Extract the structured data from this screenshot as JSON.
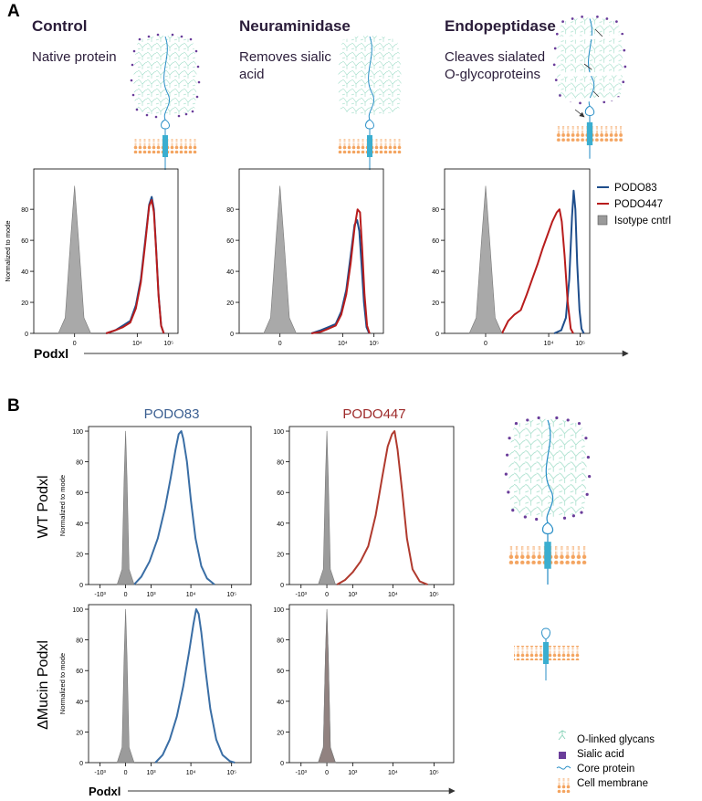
{
  "panel_a": {
    "label": "A",
    "x_axis_label": "Podxl",
    "treatments": [
      {
        "title": "Control",
        "description": "Native protein"
      },
      {
        "title": "Neuraminidase",
        "description": "Removes sialic acid"
      },
      {
        "title": "Endopeptidase",
        "description": "Cleaves sialated O-glycoproteins"
      }
    ]
  },
  "panel_b": {
    "label": "B",
    "x_axis_label": "Podxl",
    "row_labels": [
      "WT Podxl",
      "ΔMucin Podxl"
    ],
    "legend": [
      "O-linked glycans",
      "Sialic acid",
      "Core protein",
      "Cell membrane"
    ]
  },
  "chart_data": [
    {
      "type": "density",
      "ylabel": "Normalized to mode",
      "xscale": "logicle",
      "logicle_width": 200,
      "xlim": [
        -2000,
        200000
      ],
      "xticks": [
        0,
        {
          "value": 10000,
          "label": "10⁴"
        },
        {
          "value": 100000,
          "label": "10⁵"
        }
      ],
      "ylim": [
        0,
        106
      ],
      "yticks": [
        0,
        20,
        40,
        60,
        80
      ],
      "series": [
        {
          "name": "PODO83",
          "color": "#1f4e8c",
          "x": [
            1000,
            2000,
            3500,
            6000,
            9000,
            13000,
            18000,
            24000,
            29000,
            34000,
            40000,
            48000,
            58000,
            70000
          ],
          "values": [
            0,
            2,
            5,
            8,
            18,
            35,
            60,
            83,
            88,
            80,
            55,
            25,
            5,
            0
          ]
        },
        {
          "name": "PODO447",
          "color": "#b81c1c",
          "x": [
            1000,
            2000,
            3500,
            6000,
            9000,
            13000,
            18000,
            24000,
            29000,
            34000,
            40000,
            48000,
            58000,
            70000
          ],
          "values": [
            0,
            2,
            4,
            7,
            16,
            33,
            58,
            82,
            86,
            78,
            54,
            24,
            5,
            0
          ]
        },
        {
          "name": "Isotype cntrl",
          "color": "#9a9a9a",
          "filled": true,
          "x": [
            -300,
            -150,
            -60,
            0,
            60,
            150,
            300
          ],
          "values": [
            0,
            10,
            60,
            95,
            60,
            10,
            0
          ]
        }
      ]
    },
    {
      "type": "density",
      "xscale": "logicle",
      "logicle_width": 200,
      "xlim": [
        -2000,
        200000
      ],
      "xticks": [
        0,
        {
          "value": 10000,
          "label": "10⁴"
        },
        {
          "value": 100000,
          "label": "10⁵"
        }
      ],
      "ylim": [
        0,
        106
      ],
      "yticks": [
        0,
        20,
        40,
        60,
        80
      ],
      "series": [
        {
          "color": "#1f4e8c",
          "x": [
            1000,
            2000,
            3500,
            6000,
            9000,
            13000,
            18000,
            24000,
            29000,
            34000,
            40000,
            48000,
            58000,
            70000
          ],
          "values": [
            0,
            2,
            4,
            6,
            14,
            28,
            50,
            70,
            73,
            66,
            45,
            20,
            4,
            0
          ]
        },
        {
          "color": "#b81c1c",
          "x": [
            1000,
            2000,
            3500,
            6000,
            9000,
            13000,
            18000,
            24000,
            30000,
            36000,
            42000,
            50000,
            60000,
            72000
          ],
          "values": [
            0,
            1,
            3,
            5,
            12,
            25,
            45,
            68,
            80,
            78,
            55,
            25,
            5,
            0
          ]
        },
        {
          "color": "#9a9a9a",
          "filled": true,
          "x": [
            -300,
            -150,
            -60,
            0,
            60,
            150,
            300
          ],
          "values": [
            0,
            10,
            60,
            95,
            60,
            10,
            0
          ]
        }
      ]
    },
    {
      "type": "density",
      "xscale": "logicle",
      "logicle_width": 200,
      "xlim": [
        -2000,
        200000
      ],
      "xticks": [
        0,
        {
          "value": 10000,
          "label": "10⁴"
        },
        {
          "value": 100000,
          "label": "10⁵"
        }
      ],
      "ylim": [
        0,
        106
      ],
      "yticks": [
        0,
        20,
        40,
        60,
        80
      ],
      "series": [
        {
          "color": "#1f4e8c",
          "x": [
            15000,
            25000,
            35000,
            45000,
            55000,
            62000,
            70000,
            80000,
            95000,
            110000,
            130000
          ],
          "values": [
            0,
            2,
            10,
            35,
            75,
            92,
            80,
            45,
            15,
            3,
            0
          ]
        },
        {
          "color": "#b81c1c",
          "x": [
            300,
            500,
            800,
            1300,
            2000,
            3000,
            4500,
            6500,
            9000,
            13000,
            18000,
            22000,
            26000,
            32000,
            40000,
            50000,
            60000
          ],
          "values": [
            0,
            8,
            12,
            15,
            25,
            35,
            45,
            55,
            63,
            72,
            78,
            80,
            72,
            50,
            20,
            3,
            0
          ]
        },
        {
          "color": "#9a9a9a",
          "filled": true,
          "x": [
            -300,
            -150,
            -60,
            0,
            60,
            150,
            300
          ],
          "values": [
            0,
            10,
            60,
            95,
            60,
            10,
            0
          ]
        }
      ]
    },
    {
      "type": "density",
      "ylabel": "Normalized to mode",
      "xscale": "logicle",
      "logicle_width": 500,
      "xlim": [
        -2000,
        300000
      ],
      "xticks": [
        {
          "value": -1000,
          "label": "-10³"
        },
        0,
        {
          "value": 1000,
          "label": "10³"
        },
        {
          "value": 10000,
          "label": "10⁴"
        },
        {
          "value": 100000,
          "label": "10⁵"
        }
      ],
      "ylim": [
        0,
        103
      ],
      "yticks": [
        0,
        20,
        40,
        60,
        80,
        100
      ],
      "series": [
        {
          "name": "PODO83",
          "color": "#3a6ea5",
          "x": [
            250,
            500,
            900,
            1500,
            2300,
            3200,
            4200,
            5000,
            5800,
            6500,
            8000,
            10000,
            13000,
            18000,
            25000,
            38000
          ],
          "values": [
            0,
            5,
            15,
            30,
            50,
            70,
            88,
            98,
            100,
            95,
            80,
            55,
            30,
            12,
            4,
            0
          ]
        },
        {
          "color": "#8a8a8a",
          "filled": true,
          "x": [
            -250,
            -100,
            -40,
            0,
            40,
            100,
            250
          ],
          "values": [
            0,
            10,
            70,
            100,
            70,
            10,
            0
          ]
        }
      ]
    },
    {
      "type": "density",
      "xscale": "logicle",
      "logicle_width": 500,
      "xlim": [
        -2000,
        300000
      ],
      "xticks": [
        {
          "value": -1000,
          "label": "-10³"
        },
        0,
        {
          "value": 1000,
          "label": "10³"
        },
        {
          "value": 10000,
          "label": "10⁴"
        },
        {
          "value": 100000,
          "label": "10⁵"
        }
      ],
      "ylim": [
        0,
        103
      ],
      "yticks": [
        0,
        20,
        40,
        60,
        80,
        100
      ],
      "series": [
        {
          "name": "PODO447",
          "color": "#b03a2e",
          "x": [
            300,
            600,
            1000,
            1600,
            2500,
            3800,
            5500,
            7500,
            9500,
            11000,
            13000,
            17000,
            22000,
            30000,
            45000,
            70000
          ],
          "values": [
            0,
            3,
            8,
            15,
            25,
            45,
            70,
            90,
            98,
            100,
            88,
            60,
            30,
            10,
            2,
            0
          ]
        },
        {
          "color": "#8a8a8a",
          "filled": true,
          "x": [
            -250,
            -100,
            -40,
            0,
            40,
            100,
            250
          ],
          "values": [
            0,
            10,
            70,
            100,
            70,
            10,
            0
          ]
        }
      ]
    },
    {
      "type": "density",
      "ylabel": "Normalized to mode",
      "xscale": "logicle",
      "logicle_width": 500,
      "xlim": [
        -2000,
        300000
      ],
      "xticks": [
        {
          "value": -1000,
          "label": "-10³"
        },
        0,
        {
          "value": 1000,
          "label": "10³"
        },
        {
          "value": 10000,
          "label": "10⁴"
        },
        {
          "value": 100000,
          "label": "10⁵"
        }
      ],
      "ylim": [
        0,
        103
      ],
      "yticks": [
        0,
        20,
        40,
        60,
        80,
        100
      ],
      "series": [
        {
          "color": "#3a6ea5",
          "x": [
            1300,
            2000,
            3000,
            4500,
            6500,
            9000,
            11500,
            13500,
            15500,
            18000,
            23000,
            30000,
            42000,
            60000,
            90000,
            120000
          ],
          "values": [
            0,
            5,
            15,
            30,
            50,
            72,
            90,
            100,
            97,
            85,
            60,
            35,
            15,
            5,
            1,
            0
          ]
        },
        {
          "color": "#8a8a8a",
          "filled": true,
          "x": [
            -250,
            -100,
            -40,
            0,
            40,
            100,
            250
          ],
          "values": [
            0,
            10,
            70,
            100,
            70,
            10,
            0
          ]
        }
      ]
    },
    {
      "type": "density",
      "xscale": "logicle",
      "logicle_width": 500,
      "xlim": [
        -2000,
        300000
      ],
      "xticks": [
        {
          "value": -1000,
          "label": "-10³"
        },
        0,
        {
          "value": 1000,
          "label": "10³"
        },
        {
          "value": 10000,
          "label": "10⁴"
        },
        {
          "value": 100000,
          "label": "10⁵"
        }
      ],
      "ylim": [
        0,
        103
      ],
      "yticks": [
        0,
        20,
        40,
        60,
        80,
        100
      ],
      "series": [
        {
          "color": "#b03a2e",
          "filled": true,
          "x": [
            -250,
            -100,
            -40,
            0,
            40,
            100,
            250
          ],
          "values": [
            0,
            10,
            70,
            100,
            70,
            10,
            0
          ]
        },
        {
          "color": "#8a8a8a",
          "filled": true,
          "x": [
            -250,
            -100,
            -40,
            0,
            40,
            100,
            250
          ],
          "values": [
            0,
            10,
            70,
            98,
            70,
            10,
            0
          ]
        }
      ]
    }
  ]
}
